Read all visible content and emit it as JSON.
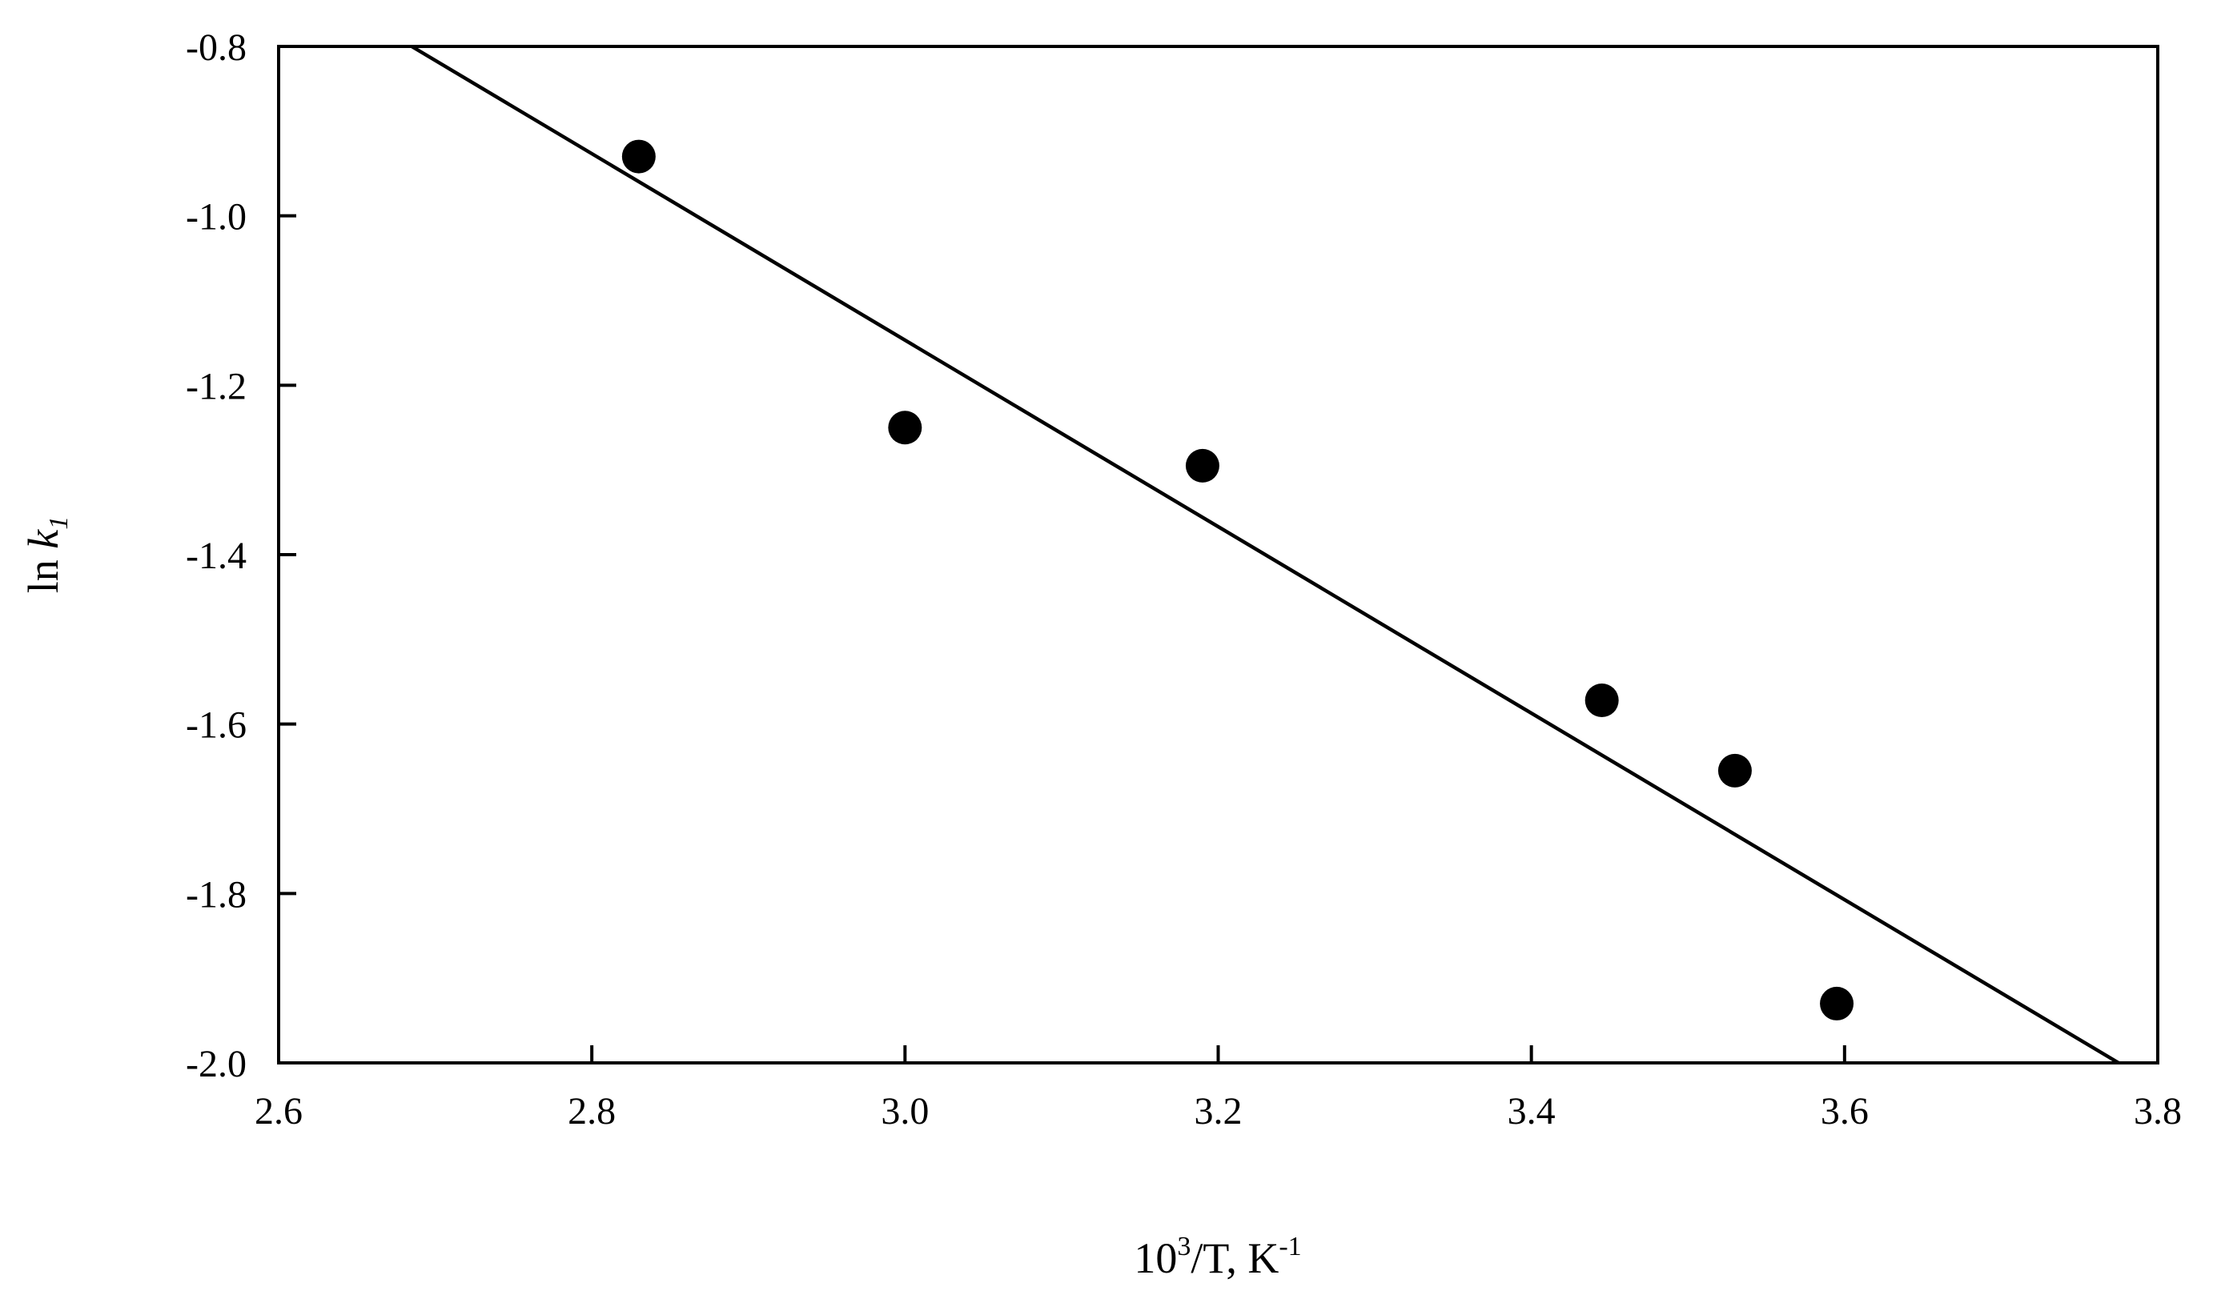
{
  "chart_data": {
    "type": "scatter",
    "title": "",
    "xlabel": {
      "base": "10",
      "sup": "3",
      "rest": "/T, K",
      "sup2": "-1"
    },
    "ylabel": {
      "prefix": "ln ",
      "var": "k",
      "sub": "1"
    },
    "xlim": [
      2.6,
      3.8
    ],
    "ylim": [
      -2.0,
      -0.8
    ],
    "xticks": [
      2.6,
      2.8,
      3.0,
      3.2,
      3.4,
      3.6,
      3.8
    ],
    "xtick_labels": [
      "2.6",
      "2.8",
      "3.0",
      "3.2",
      "3.4",
      "3.6",
      "3.8"
    ],
    "yticks": [
      -0.8,
      -1.0,
      -1.2,
      -1.4,
      -1.6,
      -1.8,
      -2.0
    ],
    "ytick_labels": [
      "-0.8",
      "-1.0",
      "-1.2",
      "-1.4",
      "-1.6",
      "-1.8",
      "-2.0"
    ],
    "grid": false,
    "points": [
      {
        "x": 2.83,
        "y": -0.93
      },
      {
        "x": 3.0,
        "y": -1.25
      },
      {
        "x": 3.19,
        "y": -1.295
      },
      {
        "x": 3.445,
        "y": -1.572
      },
      {
        "x": 3.53,
        "y": -1.655
      },
      {
        "x": 3.595,
        "y": -1.93
      }
    ],
    "fit_line": {
      "x": [
        2.685,
        3.775
      ],
      "y": [
        -0.8,
        -2.0
      ]
    }
  }
}
